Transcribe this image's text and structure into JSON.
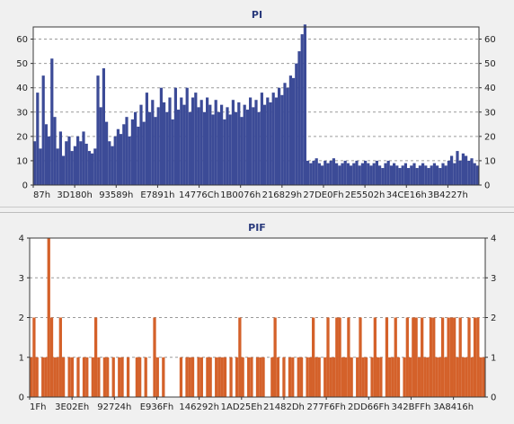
{
  "chart_data": [
    {
      "type": "bar",
      "title": "PI",
      "xlabel": "",
      "ylabel": "",
      "ylim": [
        0,
        65
      ],
      "y_ticks": [
        0,
        10,
        20,
        30,
        40,
        50,
        60
      ],
      "x_tick_labels": [
        "87h",
        "3D180h",
        "93589h",
        "E7891h",
        "14776Ch",
        "1B0076h",
        "216829h",
        "27DE0Fh",
        "2E5502h",
        "34CE16h",
        "3B4227h"
      ],
      "grid": true,
      "color": "#3c4b97",
      "series": [
        {
          "values": [
            18,
            38,
            15,
            45,
            25,
            20,
            52,
            28,
            15,
            22,
            12,
            18,
            20,
            14,
            16,
            20,
            18,
            22,
            17,
            14,
            13,
            15,
            45,
            32,
            48,
            26,
            18,
            16,
            20,
            23,
            21,
            25,
            28,
            20,
            27,
            30,
            24,
            33,
            26,
            38,
            30,
            35,
            28,
            32,
            40,
            34,
            30,
            36,
            27,
            40,
            31,
            36,
            33,
            40,
            30,
            36,
            38,
            32,
            35,
            30,
            36,
            33,
            29,
            35,
            30,
            33,
            27,
            32,
            29,
            35,
            30,
            34,
            28,
            33,
            31,
            36,
            32,
            35,
            30,
            38,
            33,
            36,
            34,
            38,
            36,
            40,
            37,
            42,
            40,
            45,
            44,
            50,
            55,
            62,
            66,
            10,
            9,
            10,
            11,
            9,
            8,
            10,
            9,
            10,
            11,
            9,
            8,
            9,
            10,
            9,
            8,
            9,
            10,
            8,
            9,
            10,
            9,
            8,
            9,
            10,
            8,
            7,
            9,
            10,
            8,
            9,
            8,
            7,
            8,
            9,
            7,
            8,
            9,
            7,
            8,
            9,
            8,
            7,
            8,
            9,
            8,
            7,
            9,
            8,
            10,
            12,
            9,
            14,
            10,
            13,
            12,
            10,
            11,
            9,
            8
          ]
        }
      ]
    },
    {
      "type": "bar",
      "title": "PIF",
      "xlabel": "",
      "ylabel": "",
      "ylim": [
        0,
        4
      ],
      "y_ticks": [
        0,
        1,
        2,
        3,
        4
      ],
      "x_tick_labels": [
        "1Fh",
        "3E02Eh",
        "92724h",
        "E936Fh",
        "146292h",
        "1AD25Eh",
        "21482Dh",
        "277F6Fh",
        "2DD66Fh",
        "342BFFh",
        "3A8416h"
      ],
      "grid": true,
      "color": "#d4612a",
      "series": [
        {
          "values": [
            1,
            2,
            1,
            0,
            1,
            1,
            4,
            2,
            1,
            1,
            2,
            1,
            0,
            1,
            1,
            0,
            1,
            0,
            1,
            1,
            0,
            1,
            2,
            1,
            0,
            1,
            1,
            0,
            1,
            0,
            1,
            1,
            0,
            1,
            0,
            0,
            1,
            1,
            0,
            1,
            0,
            0,
            2,
            1,
            0,
            1,
            0,
            0,
            0,
            0,
            0,
            1,
            0,
            1,
            1,
            1,
            0,
            1,
            1,
            0,
            1,
            1,
            0,
            1,
            1,
            1,
            1,
            0,
            1,
            0,
            1,
            2,
            1,
            0,
            1,
            1,
            0,
            1,
            1,
            1,
            0,
            0,
            1,
            2,
            1,
            0,
            1,
            0,
            1,
            1,
            0,
            1,
            1,
            0,
            1,
            1,
            2,
            1,
            1,
            0,
            1,
            2,
            1,
            1,
            2,
            2,
            1,
            1,
            2,
            1,
            0,
            1,
            2,
            1,
            1,
            0,
            1,
            2,
            1,
            1,
            0,
            2,
            1,
            1,
            2,
            1,
            0,
            1,
            2,
            1,
            2,
            2,
            1,
            2,
            1,
            1,
            2,
            2,
            1,
            1,
            2,
            1,
            2,
            2,
            2,
            1,
            2,
            1,
            1,
            2,
            1,
            2,
            2,
            1,
            1
          ]
        }
      ]
    }
  ]
}
